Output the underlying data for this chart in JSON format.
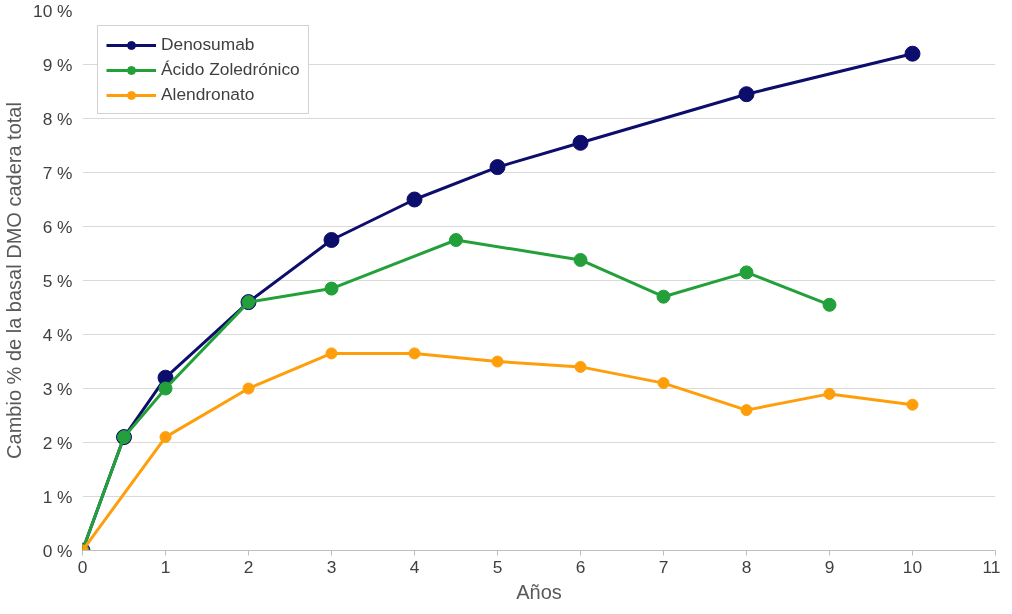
{
  "chart_data": {
    "type": "line",
    "xlabel": "Años",
    "ylabel": "Cambio % de la basal DMO cadera total",
    "xlim": [
      0,
      11
    ],
    "xticks": [
      0,
      1,
      2,
      3,
      4,
      5,
      6,
      7,
      8,
      9,
      10,
      11
    ],
    "ylim": [
      0,
      10
    ],
    "yticks": [
      {
        "value": 0,
        "label": "0 %"
      },
      {
        "value": 1,
        "label": "1 %"
      },
      {
        "value": 2,
        "label": "2 %"
      },
      {
        "value": 3,
        "label": "3 %"
      },
      {
        "value": 4,
        "label": "4 %"
      },
      {
        "value": 5,
        "label": "5 %"
      },
      {
        "value": 6,
        "label": "6 %"
      },
      {
        "value": 7,
        "label": "7 %"
      },
      {
        "value": 8,
        "label": "8 %"
      },
      {
        "value": 9,
        "label": "9 %"
      },
      {
        "value": 10,
        "label": "10 %"
      }
    ],
    "grid": "y",
    "legend": "top left",
    "marker": "circle",
    "line_style": "solid",
    "series": [
      {
        "name": "Denosumab",
        "color": "#0d0d6b",
        "x": [
          0,
          0.5,
          1,
          2,
          3,
          4,
          5,
          6,
          8,
          10
        ],
        "values": [
          0,
          2.1,
          3.2,
          4.6,
          5.75,
          6.5,
          7.1,
          7.55,
          8.45,
          9.2
        ]
      },
      {
        "name": "Ácido Zoledrónico",
        "color": "#23a03a",
        "x": [
          0,
          0.5,
          1,
          2,
          3,
          4.5,
          6,
          7,
          8,
          9
        ],
        "values": [
          0,
          2.1,
          3.0,
          4.6,
          4.85,
          5.75,
          5.38,
          4.7,
          5.15,
          4.55
        ]
      },
      {
        "name": "Alendronato",
        "color": "#ff9e0b",
        "x": [
          0,
          1,
          2,
          3,
          4,
          5,
          6,
          7,
          8,
          9,
          10
        ],
        "values": [
          0,
          2.1,
          3.0,
          3.65,
          3.65,
          3.5,
          3.4,
          3.1,
          2.6,
          2.9,
          2.7
        ]
      }
    ]
  }
}
